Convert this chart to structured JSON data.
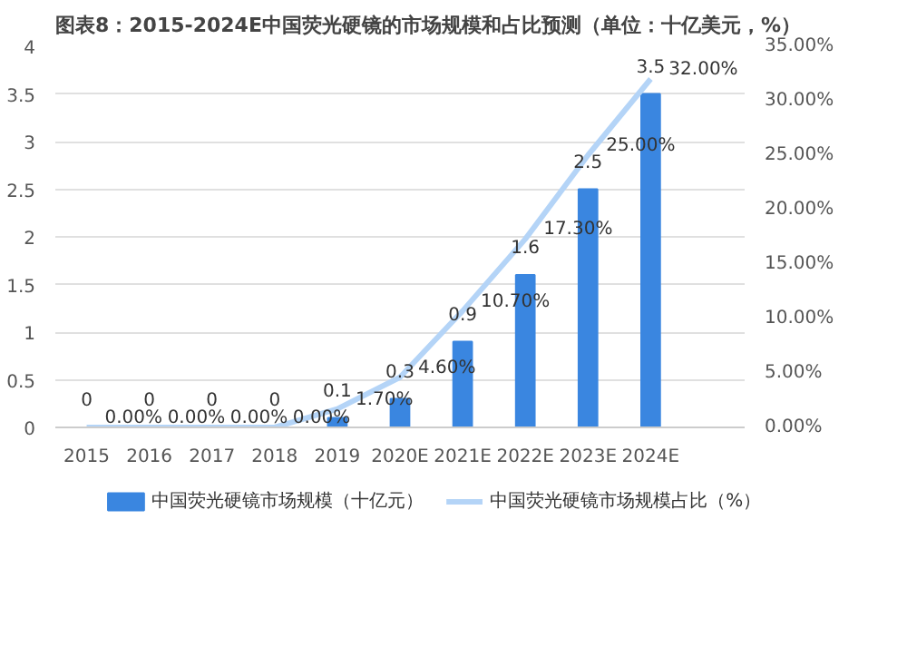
{
  "chart_data": {
    "type": "bar",
    "title": "图表8：2015-2024E中国荧光硬镜的市场规模和占比预测（单位：十亿美元，%）",
    "categories": [
      "2015",
      "2016",
      "2017",
      "2018",
      "2019",
      "2020E",
      "2021E",
      "2022E",
      "2023E",
      "2024E"
    ],
    "series": [
      {
        "name": "中国荧光硬镜市场规模（十亿元）",
        "color": "#3a86e0",
        "values": [
          0,
          0,
          0,
          0,
          0.1,
          0.3,
          0.9,
          1.6,
          2.5,
          3.5
        ],
        "data_labels": true
      },
      {
        "name": "中国荧光硬镜市场规模占比（%）",
        "type": "line",
        "axis": "y2",
        "color": "#b4d4f7",
        "values": [
          0,
          0,
          0,
          0,
          1.7,
          4.6,
          10.7,
          17.3,
          25,
          32
        ],
        "value_labels": [
          "0.00%",
          "0.00%",
          "0.00%",
          "0.00%",
          "1.70%",
          "4.60%",
          "10.70%",
          "17.30%",
          "25.00%",
          "32.00%"
        ]
      }
    ],
    "ylim": [
      0,
      4
    ],
    "yticks": [
      0,
      0.5,
      1,
      1.5,
      2,
      2.5,
      3,
      3.5,
      4
    ],
    "y2lim": [
      0,
      35
    ],
    "y2ticks": [
      {
        "value": 0,
        "label": "0.00%"
      },
      {
        "value": 5,
        "label": "5.00%"
      },
      {
        "value": 10,
        "label": "10.00%"
      },
      {
        "value": 15,
        "label": "15.00%"
      },
      {
        "value": 20,
        "label": "20.00%"
      },
      {
        "value": 25,
        "label": "25.00%"
      },
      {
        "value": 30,
        "label": "30.00%"
      },
      {
        "value": 35,
        "label": "35.00%"
      }
    ],
    "grid": "y",
    "legend": "bottom"
  }
}
